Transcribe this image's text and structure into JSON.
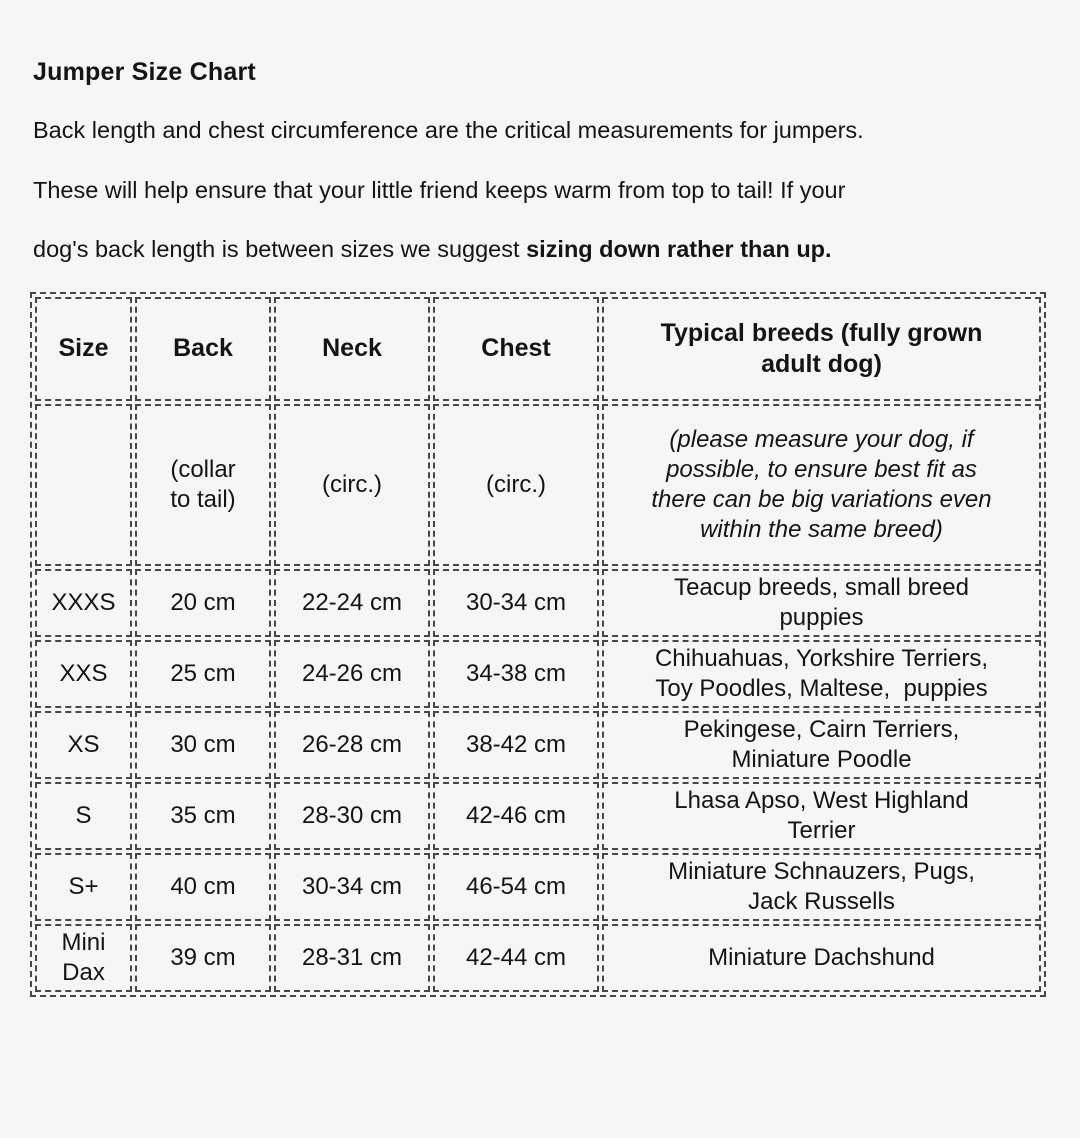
{
  "page": {
    "background_color": "#f6f6f6",
    "text_color": "#141414",
    "border_color": "#474747"
  },
  "header": {
    "title": "Jumper Size Chart",
    "intro_lines": [
      "Back length and chest circumference are the critical measurements for jumpers.",
      "These will help ensure that your little friend keeps warm from top to tail! If your"
    ],
    "intro_line3": {
      "pre": "dog's back length is between sizes we suggest ",
      "bold": "sizing down rather than up."
    }
  },
  "table": {
    "header": [
      "Size",
      "Back",
      "Neck",
      "Chest",
      [
        "Typical breeds (fully grown",
        "adult dog)"
      ]
    ],
    "subheader": [
      "",
      [
        "(collar",
        "to tail)"
      ],
      "(circ.)",
      "(circ.)",
      [
        "(please measure your dog, if",
        "possible, to ensure best fit as",
        "there can be big variations even",
        "within the same breed)"
      ]
    ],
    "rows": [
      [
        "XXXS",
        "20 cm",
        "22-24 cm",
        "30-34 cm",
        [
          "Teacup breeds, small breed",
          "puppies"
        ]
      ],
      [
        "XXS",
        "25 cm",
        "24-26 cm",
        "34-38 cm",
        [
          "Chihuahuas, Yorkshire Terriers,",
          "Toy Poodles, Maltese,  puppies"
        ]
      ],
      [
        "XS",
        "30 cm",
        "26-28 cm",
        "38-42 cm",
        [
          "Pekingese, Cairn Terriers,",
          "Miniature Poodle"
        ]
      ],
      [
        "S",
        "35 cm",
        "28-30 cm",
        "42-46 cm",
        [
          "Lhasa Apso, West Highland",
          "Terrier"
        ]
      ],
      [
        "S+",
        "40 cm",
        "30-34 cm",
        "46-54 cm",
        [
          "Miniature Schnauzers, Pugs,",
          "Jack Russells"
        ]
      ],
      [
        [
          "Mini",
          "Dax"
        ],
        "39 cm",
        "28-31 cm",
        "42-44 cm",
        [
          "Miniature Dachshund"
        ]
      ]
    ]
  }
}
